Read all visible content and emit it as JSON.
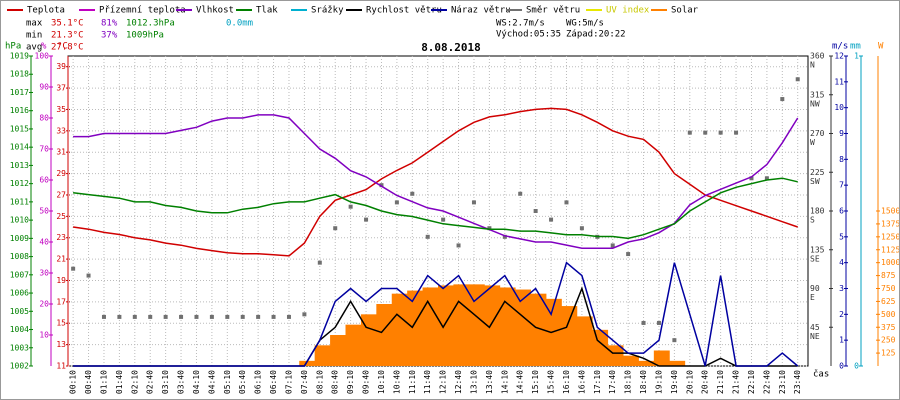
{
  "chart_data": {
    "type": "line",
    "title": "8.08.2018",
    "x_label": "čas",
    "categories": [
      "00:10",
      "00:40",
      "01:10",
      "01:40",
      "02:10",
      "02:40",
      "03:10",
      "03:40",
      "04:10",
      "04:40",
      "05:10",
      "05:40",
      "06:10",
      "06:40",
      "07:10",
      "07:40",
      "08:10",
      "08:40",
      "09:10",
      "09:40",
      "10:10",
      "10:40",
      "11:10",
      "11:40",
      "12:10",
      "12:40",
      "13:10",
      "13:40",
      "14:10",
      "14:40",
      "15:10",
      "15:40",
      "16:10",
      "16:40",
      "17:10",
      "17:40",
      "18:10",
      "18:40",
      "19:10",
      "19:40",
      "20:10",
      "20:40",
      "21:10",
      "21:40",
      "22:10",
      "22:40",
      "23:10",
      "23:40"
    ],
    "stats": {
      "labels": [
        "max",
        "min",
        "avg"
      ],
      "rows": [
        [
          "35.1°C",
          "81%",
          "1012.3hPa",
          "0.0mm"
        ],
        [
          "21.3°C",
          "37%",
          "1009hPa"
        ],
        [
          "27.8°C"
        ]
      ]
    },
    "info": [
      "WS:2.7m/s",
      "WG:5m/s",
      "Východ:05:35",
      "Západ:20:22"
    ],
    "grid": true,
    "axes": [
      {
        "unit": "hPa",
        "color": "#008000",
        "side": "left",
        "lim": [
          1002,
          1019
        ],
        "ticks": [
          1002,
          1003,
          1004,
          1005,
          1006,
          1007,
          1008,
          1009,
          1010,
          1011,
          1012,
          1013,
          1014,
          1015,
          1016,
          1017,
          1018,
          1019
        ]
      },
      {
        "unit": "%",
        "color": "#c000c0",
        "side": "left",
        "lim": [
          0,
          100
        ],
        "ticks": [
          10,
          20,
          30,
          40,
          50,
          60,
          70,
          80,
          90,
          100
        ]
      },
      {
        "unit": "°C",
        "color": "#d00000",
        "side": "left",
        "lim": [
          11,
          40
        ],
        "ticks": [
          11,
          13,
          15,
          17,
          19,
          21,
          23,
          25,
          27,
          29,
          31,
          33,
          35,
          37,
          39
        ]
      },
      {
        "color": "#333333",
        "side": "right",
        "lim": [
          0,
          360
        ],
        "ticks": [
          45,
          90,
          135,
          180,
          225,
          270,
          315,
          360
        ],
        "tick_names": [
          "NE",
          "E",
          "SE",
          "S",
          "SW",
          "W",
          "NW",
          "N"
        ]
      },
      {
        "unit": "m/s",
        "color": "#0000a0",
        "side": "right",
        "lim": [
          0,
          12
        ],
        "ticks": [
          0,
          1,
          2,
          3,
          4,
          5,
          6,
          7,
          8,
          9,
          10,
          11,
          12
        ]
      },
      {
        "unit": "mm",
        "color": "#00a0c0",
        "side": "right",
        "lim": [
          0,
          1
        ],
        "ticks": [
          0,
          1
        ]
      },
      {
        "unit": "W",
        "color": "#ff8000",
        "side": "right",
        "lim": [
          0,
          3000
        ],
        "ticks": [
          125,
          250,
          375,
          500,
          625,
          750,
          875,
          1000,
          1125,
          1250,
          1375,
          1500
        ]
      }
    ],
    "series": [
      {
        "name": "Teplota",
        "color": "#d00000",
        "axis": 2,
        "style": "line",
        "values": [
          24,
          23.8,
          23.5,
          23.3,
          23,
          22.8,
          22.5,
          22.3,
          22,
          21.8,
          21.6,
          21.5,
          21.5,
          21.4,
          21.3,
          22.5,
          25,
          26.5,
          27,
          27.5,
          28.5,
          29.3,
          30,
          31,
          32,
          33,
          33.8,
          34.3,
          34.5,
          34.8,
          35,
          35.1,
          35,
          34.5,
          33.8,
          33,
          32.5,
          32.2,
          31,
          29,
          28,
          27,
          26.5,
          26,
          25.5,
          25,
          24.5,
          24
        ]
      },
      {
        "name": "Přízemní teplota",
        "color": "#c000c0"
      },
      {
        "name": "Vlhkost",
        "color": "#8000c0",
        "axis": 1,
        "style": "line",
        "values": [
          74,
          74,
          75,
          75,
          75,
          75,
          75,
          76,
          77,
          79,
          80,
          80,
          81,
          81,
          80,
          75,
          70,
          67,
          63,
          61,
          58,
          55,
          53,
          51,
          50,
          48,
          46,
          44,
          42,
          41,
          40,
          40,
          39,
          38,
          38,
          38,
          40,
          41,
          43,
          46,
          52,
          55,
          57,
          59,
          61,
          65,
          72,
          80
        ]
      },
      {
        "name": "Tlak",
        "color": "#008000",
        "axis": 0,
        "style": "line",
        "values": [
          1011.5,
          1011.4,
          1011.3,
          1011.2,
          1011,
          1011,
          1010.8,
          1010.7,
          1010.5,
          1010.4,
          1010.4,
          1010.6,
          1010.7,
          1010.9,
          1011,
          1011,
          1011.2,
          1011.4,
          1011,
          1010.8,
          1010.5,
          1010.3,
          1010.2,
          1010,
          1009.8,
          1009.7,
          1009.6,
          1009.5,
          1009.5,
          1009.4,
          1009.4,
          1009.3,
          1009.2,
          1009.2,
          1009.1,
          1009.1,
          1009,
          1009.2,
          1009.5,
          1009.8,
          1010.5,
          1011,
          1011.5,
          1011.8,
          1012,
          1012.2,
          1012.3,
          1012.1
        ]
      },
      {
        "name": "Srážky",
        "color": "#00b0d0"
      },
      {
        "name": "Rychlost větru",
        "color": "#000000",
        "axis": 4,
        "style": "line",
        "values": [
          0,
          0,
          0,
          0,
          0,
          0,
          0,
          0,
          0,
          0,
          0,
          0,
          0,
          0,
          0,
          0,
          1,
          1.5,
          2.5,
          1.5,
          1.3,
          2,
          1.5,
          2.5,
          1.5,
          2.5,
          2,
          1.5,
          2.5,
          2,
          1.5,
          1.3,
          1.5,
          3,
          1,
          0.5,
          0.5,
          0.3,
          0,
          0,
          0,
          0,
          0.3,
          0,
          0,
          0,
          0,
          0
        ]
      },
      {
        "name": "Náraz větru",
        "color": "#0000a0",
        "axis": 4,
        "style": "line",
        "values": [
          0,
          0,
          0,
          0,
          0,
          0,
          0,
          0,
          0,
          0,
          0,
          0,
          0,
          0,
          0,
          0,
          1,
          2.5,
          3,
          2.5,
          3,
          3,
          2.5,
          3.5,
          3,
          3.5,
          2.5,
          3,
          3.5,
          2.5,
          3,
          2,
          4,
          3.5,
          1.5,
          1,
          0.5,
          0.5,
          1,
          4,
          2,
          0,
          3.5,
          0,
          0,
          0,
          0.5,
          0
        ]
      },
      {
        "name": "Směr větru",
        "color": "#707070",
        "axis": 3,
        "style": "points",
        "values": [
          113,
          105,
          57,
          57,
          57,
          57,
          57,
          57,
          57,
          57,
          57,
          57,
          57,
          57,
          57,
          60,
          120,
          160,
          185,
          170,
          210,
          190,
          200,
          150,
          170,
          140,
          190,
          160,
          150,
          200,
          180,
          170,
          190,
          160,
          150,
          140,
          130,
          50,
          50,
          30,
          271,
          271,
          271,
          271,
          218,
          218,
          310,
          333
        ]
      },
      {
        "name": "UV index",
        "color": "#e8e800"
      },
      {
        "name": "Solar",
        "color": "#ff8000",
        "axis": 6,
        "style": "bars",
        "values": [
          0,
          0,
          0,
          0,
          0,
          0,
          0,
          0,
          0,
          0,
          0,
          0,
          0,
          0,
          0,
          50,
          200,
          300,
          400,
          500,
          600,
          700,
          730,
          760,
          780,
          790,
          790,
          780,
          760,
          740,
          700,
          650,
          580,
          480,
          350,
          200,
          100,
          50,
          150,
          50,
          0,
          0,
          0,
          0,
          0,
          0,
          0,
          0
        ]
      }
    ]
  }
}
